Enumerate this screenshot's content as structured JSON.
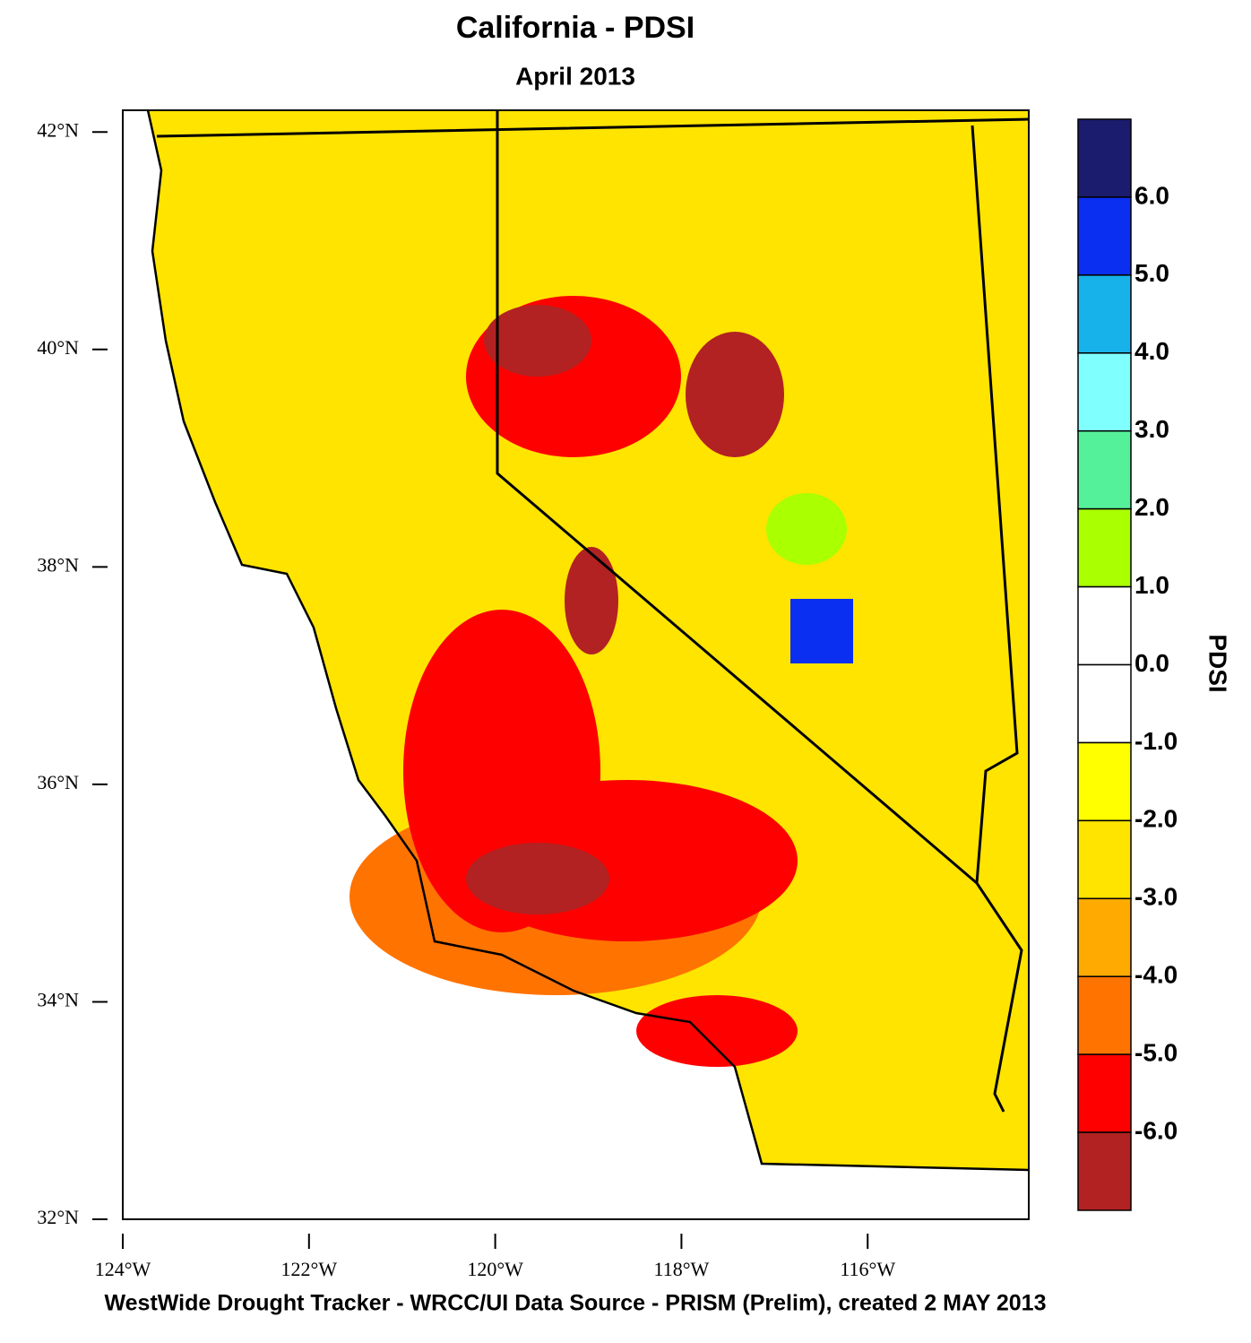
{
  "title": "California - PDSI",
  "subtitle": "April 2013",
  "map": {
    "xlim": [
      -124,
      -114.27
    ],
    "ylim": [
      32,
      42.2
    ],
    "lat_ticks": [
      {
        "value": 42,
        "label": "42°N"
      },
      {
        "value": 40,
        "label": "40°N"
      },
      {
        "value": 38,
        "label": "38°N"
      },
      {
        "value": 36,
        "label": "36°N"
      },
      {
        "value": 34,
        "label": "34°N"
      },
      {
        "value": 32,
        "label": "32°N"
      }
    ],
    "lon_ticks": [
      {
        "value": -124,
        "label": "124°W"
      },
      {
        "value": -122,
        "label": "122°W"
      },
      {
        "value": -120,
        "label": "120°W"
      },
      {
        "value": -118,
        "label": "118°W"
      },
      {
        "value": -116,
        "label": "116°W"
      }
    ]
  },
  "colorbar": {
    "title": "PDSI",
    "lim": [
      -7,
      7
    ],
    "ticks": [
      {
        "value": 6,
        "label": "6.0"
      },
      {
        "value": 5,
        "label": "5.0"
      },
      {
        "value": 4,
        "label": "4.0"
      },
      {
        "value": 3,
        "label": "3.0"
      },
      {
        "value": 2,
        "label": "2.0"
      },
      {
        "value": 1,
        "label": "1.0"
      },
      {
        "value": 0,
        "label": "0.0"
      },
      {
        "value": -1,
        "label": "-1.0"
      },
      {
        "value": -2,
        "label": "-2.0"
      },
      {
        "value": -3,
        "label": "-3.0"
      },
      {
        "value": -4,
        "label": "-4.0"
      },
      {
        "value": -5,
        "label": "-5.0"
      },
      {
        "value": -6,
        "label": "-6.0"
      }
    ],
    "colors": [
      "#1c1c6e",
      "#0a2ff0",
      "#18b2ea",
      "#80ffff",
      "#55f09a",
      "#aaff00",
      "#ffffff",
      "#ffffff",
      "#ffff00",
      "#ffe400",
      "#ffaa00",
      "#ff7300",
      "#ff0000",
      "#b22222"
    ]
  },
  "footer": "WestWide Drought Tracker - WRCC/UI  Data Source - PRISM (Prelim), created  2 MAY 2013"
}
